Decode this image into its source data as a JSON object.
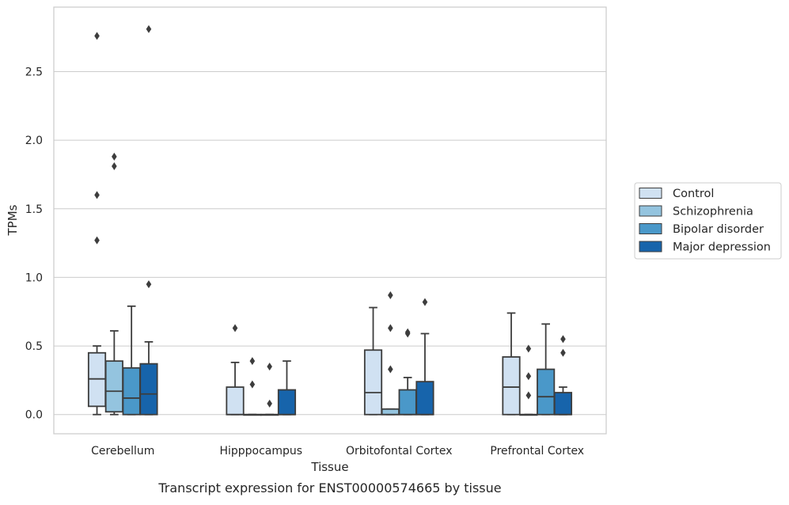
{
  "caption": "Transcript expression for ENST00000574665 by tissue",
  "chart_data": {
    "type": "box",
    "xlabel": "Tissue",
    "ylabel": "TPMs",
    "ylim": [
      -0.14,
      2.97
    ],
    "yticks": [
      "0.0",
      "0.5",
      "1.0",
      "1.5",
      "2.0",
      "2.5"
    ],
    "grid": "horizontal",
    "legend_position": "right",
    "categories": [
      "Cerebellum",
      "Hipppocampus",
      "Orbitofontal Cortex",
      "Prefrontal Cortex"
    ],
    "series": [
      {
        "name": "Control",
        "color": "#d0e1f2",
        "boxes": [
          {
            "whislo": 0.0,
            "q1": 0.06,
            "med": 0.26,
            "q3": 0.45,
            "whishi": 0.5,
            "fliers": [
              1.27,
              1.6,
              2.76
            ]
          },
          {
            "whislo": 0.0,
            "q1": 0.0,
            "med": 0.0,
            "q3": 0.2,
            "whishi": 0.38,
            "fliers": [
              0.63
            ]
          },
          {
            "whislo": 0.0,
            "q1": 0.0,
            "med": 0.16,
            "q3": 0.47,
            "whishi": 0.78,
            "fliers": []
          },
          {
            "whislo": 0.0,
            "q1": 0.0,
            "med": 0.2,
            "q3": 0.42,
            "whishi": 0.74,
            "fliers": []
          }
        ]
      },
      {
        "name": "Schizophrenia",
        "color": "#94c4df",
        "boxes": [
          {
            "whislo": 0.0,
            "q1": 0.02,
            "med": 0.17,
            "q3": 0.39,
            "whishi": 0.61,
            "fliers": [
              1.81,
              1.88
            ]
          },
          {
            "whislo": 0.0,
            "q1": 0.0,
            "med": 0.0,
            "q3": 0.0,
            "whishi": 0.0,
            "fliers": [
              0.22,
              0.39
            ]
          },
          {
            "whislo": 0.0,
            "q1": 0.0,
            "med": 0.0,
            "q3": 0.04,
            "whishi": 0.04,
            "fliers": [
              0.33,
              0.63,
              0.87
            ]
          },
          {
            "whislo": 0.0,
            "q1": 0.0,
            "med": 0.0,
            "q3": 0.0,
            "whishi": 0.0,
            "fliers": [
              0.14,
              0.28,
              0.48
            ]
          }
        ]
      },
      {
        "name": "Bipolar disorder",
        "color": "#4a98c9",
        "boxes": [
          {
            "whislo": 0.0,
            "q1": 0.0,
            "med": 0.12,
            "q3": 0.34,
            "whishi": 0.79,
            "fliers": []
          },
          {
            "whislo": 0.0,
            "q1": 0.0,
            "med": 0.0,
            "q3": 0.0,
            "whishi": 0.0,
            "fliers": [
              0.08,
              0.35
            ]
          },
          {
            "whislo": 0.0,
            "q1": 0.0,
            "med": 0.0,
            "q3": 0.18,
            "whishi": 0.27,
            "fliers": [
              0.59,
              0.6
            ]
          },
          {
            "whislo": 0.0,
            "q1": 0.0,
            "med": 0.13,
            "q3": 0.33,
            "whishi": 0.66,
            "fliers": []
          }
        ]
      },
      {
        "name": "Major depression",
        "color": "#1764ab",
        "boxes": [
          {
            "whislo": 0.0,
            "q1": 0.0,
            "med": 0.15,
            "q3": 0.37,
            "whishi": 0.53,
            "fliers": [
              0.95,
              2.81
            ]
          },
          {
            "whislo": 0.0,
            "q1": 0.0,
            "med": 0.0,
            "q3": 0.18,
            "whishi": 0.39,
            "fliers": []
          },
          {
            "whislo": 0.0,
            "q1": 0.0,
            "med": 0.0,
            "q3": 0.24,
            "whishi": 0.59,
            "fliers": [
              0.82
            ]
          },
          {
            "whislo": 0.0,
            "q1": 0.0,
            "med": 0.0,
            "q3": 0.16,
            "whishi": 0.2,
            "fliers": [
              0.45,
              0.55
            ]
          }
        ]
      }
    ]
  }
}
